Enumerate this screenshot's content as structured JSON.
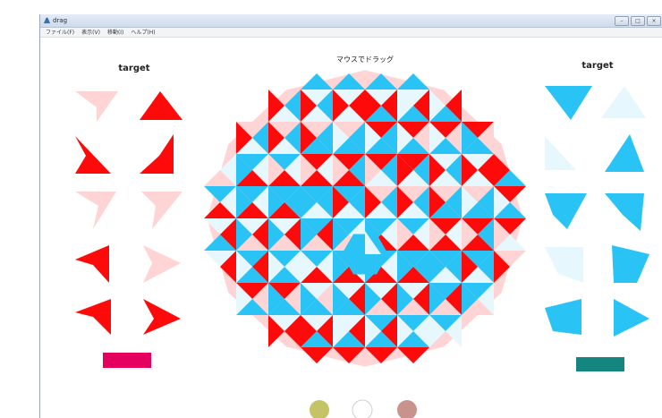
{
  "window": {
    "title": "drag",
    "controls": [
      "–",
      "□",
      "×"
    ]
  },
  "menu": [
    "ファイル(F)",
    "表示(V)",
    "移動(I)",
    "ヘルプ(H)"
  ],
  "left_panel": {
    "label": "target"
  },
  "center": {
    "label": "マウスでドラッグ"
  },
  "right_panel": {
    "label": "target"
  },
  "colors": {
    "red": "#ff0a0a",
    "pink": "#ffd4d4",
    "cyan": "#29c3f5",
    "pale_cyan": "#e6f8fe",
    "left_button": "#e5005f",
    "right_button": "#14857f",
    "circle_olive": "#c4c466",
    "circle_white": "#ffffff",
    "circle_rose": "#c8938c"
  },
  "color_circles": [
    "olive",
    "white",
    "rose"
  ]
}
